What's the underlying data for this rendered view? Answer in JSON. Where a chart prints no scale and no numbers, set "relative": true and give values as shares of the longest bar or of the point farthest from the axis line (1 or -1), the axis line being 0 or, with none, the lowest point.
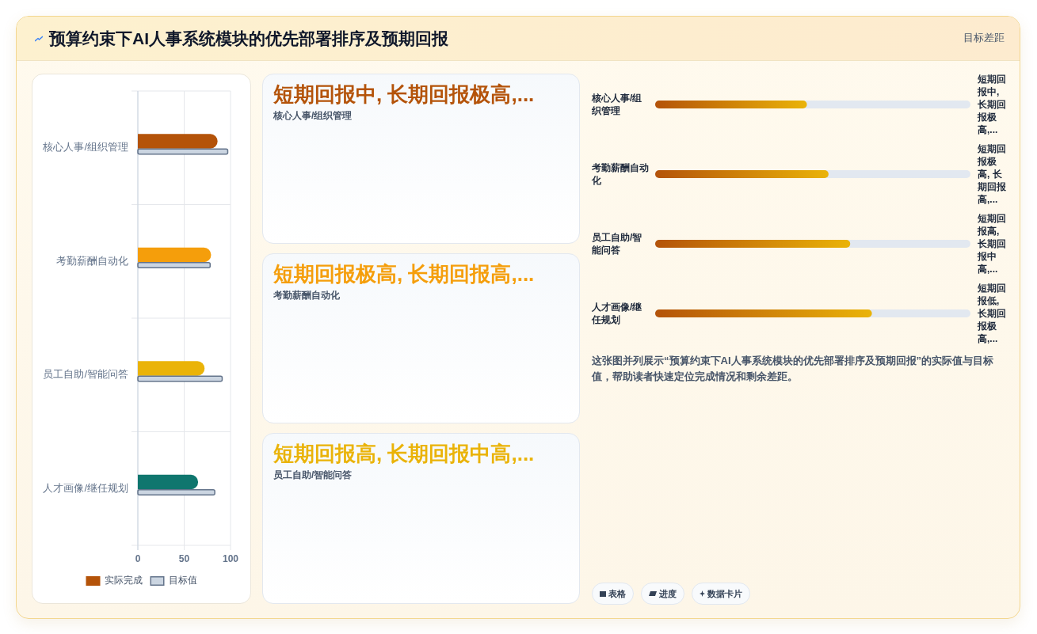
{
  "chart_data": [
    {
      "type": "bar",
      "orientation": "horizontal",
      "title": "预算约束下AI人事系统模块的优先部署排序及预期回报",
      "categories": [
        "核心人事/组织管理",
        "考勤薪酬自动化",
        "员工自助/智能问答",
        "人才画像/继任规划"
      ],
      "series": [
        {
          "name": "实际完成",
          "colors": [
            "#b45309",
            "#f59e0b",
            "#eab308",
            "#0f766e"
          ],
          "values": [
            86,
            79,
            72,
            65
          ]
        },
        {
          "name": "目标值",
          "color": "#cbd5e1",
          "values": [
            97,
            78,
            91,
            83
          ]
        }
      ],
      "xlim": [
        0,
        100
      ],
      "xticks": [
        0,
        50,
        100
      ],
      "grid": true,
      "legend": "bottom"
    },
    {
      "type": "other",
      "title": "短期回报中, 长期回报极高,...",
      "subtitle": "核心人事/组织管理",
      "color": "#b45309"
    },
    {
      "type": "other",
      "title": "短期回报极高, 长期回报高,...",
      "subtitle": "考勤薪酬自动化",
      "color": "#f59e0b"
    },
    {
      "type": "other",
      "title": "短期回报高, 长期回报中高,...",
      "subtitle": "员工自助/智能问答",
      "color": "#eab308"
    },
    {
      "type": "bar",
      "orientation": "horizontal",
      "relative": true,
      "categories": [
        "核心人事/组织管理",
        "考勤薪酬自动化",
        "员工自助/智能问答",
        "人才画像/继任规划"
      ],
      "values": [
        0.7,
        0.8,
        0.9,
        1
      ],
      "color": "#b45309",
      "annotations": [
        "短期回报中, 长期回报极高,...",
        "短期回报极高, 长期回报高,...",
        "短期回报高, 长期回报中高,...",
        "短期回报低, 长期回报极高,...",
        "这张图并列展示“预算约束下AI人事系统模块的优先部署排序及预期回报”的实际值与目标值，帮助读者快速定位完成情况和剩余差距。"
      ]
    },
    {
      "type": "other",
      "annotations": [
        "表格",
        "进度",
        "数据卡片"
      ]
    },
    {
      "type": "other",
      "annotations": [
        "目标差距"
      ]
    }
  ]
}
